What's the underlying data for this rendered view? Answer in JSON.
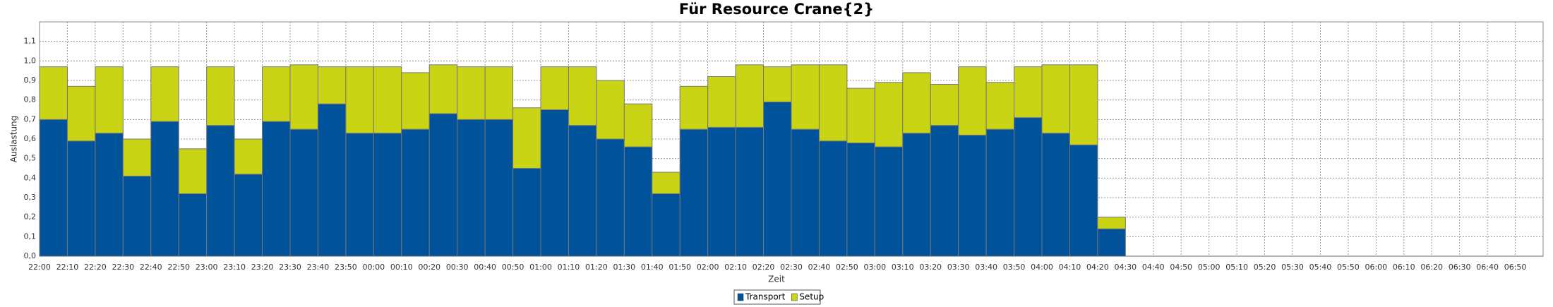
{
  "chart_data": {
    "type": "bar",
    "stacked": true,
    "title": "Für Resource Crane{2}",
    "x_label": "Zeit",
    "y_label": "Auslastung",
    "categories": [
      "22:00",
      "22:10",
      "22:20",
      "22:30",
      "22:40",
      "22:50",
      "23:00",
      "23:10",
      "23:20",
      "23:30",
      "23:40",
      "23:50",
      "00:00",
      "00:10",
      "00:20",
      "00:30",
      "00:40",
      "00:50",
      "01:00",
      "01:10",
      "01:20",
      "01:30",
      "01:40",
      "01:50",
      "02:00",
      "02:10",
      "02:20",
      "02:30",
      "02:40",
      "02:50",
      "03:00",
      "03:10",
      "03:20",
      "03:30",
      "03:40",
      "03:50",
      "04:00",
      "04:10",
      "04:20",
      "04:30",
      "04:40",
      "04:50",
      "05:00",
      "05:10",
      "05:20",
      "05:30",
      "05:40",
      "05:50",
      "06:00",
      "06:10",
      "06:20",
      "06:30",
      "06:40",
      "06:50"
    ],
    "series": [
      {
        "name": "Transport",
        "color": "#00529b",
        "values": [
          0.7,
          0.59,
          0.63,
          0.41,
          0.69,
          0.32,
          0.67,
          0.42,
          0.69,
          0.65,
          0.78,
          0.63,
          0.63,
          0.65,
          0.73,
          0.7,
          0.7,
          0.45,
          0.75,
          0.67,
          0.6,
          0.56,
          0.32,
          0.65,
          0.66,
          0.66,
          0.79,
          0.65,
          0.59,
          0.58,
          0.56,
          0.63,
          0.67,
          0.62,
          0.65,
          0.71,
          0.63,
          0.57,
          0.14,
          null,
          null,
          null,
          null,
          null,
          null,
          null,
          null,
          null,
          null,
          null,
          null,
          null,
          null,
          null
        ]
      },
      {
        "name": "Setup",
        "color": "#c8d414",
        "values": [
          0.27,
          0.28,
          0.34,
          0.19,
          0.28,
          0.23,
          0.3,
          0.18,
          0.28,
          0.33,
          0.19,
          0.34,
          0.34,
          0.29,
          0.25,
          0.27,
          0.27,
          0.31,
          0.22,
          0.3,
          0.3,
          0.22,
          0.11,
          0.22,
          0.26,
          0.32,
          0.18,
          0.33,
          0.39,
          0.28,
          0.33,
          0.31,
          0.21,
          0.35,
          0.24,
          0.26,
          0.35,
          0.41,
          0.06,
          null,
          null,
          null,
          null,
          null,
          null,
          null,
          null,
          null,
          null,
          null,
          null,
          null,
          null,
          null
        ]
      }
    ],
    "ylim": [
      0,
      1.2
    ],
    "yticks": [
      {
        "value": 0,
        "label": "0,0"
      },
      {
        "value": 0.1,
        "label": "0,1"
      },
      {
        "value": 0.2,
        "label": "0,2"
      },
      {
        "value": 0.3,
        "label": "0,3"
      },
      {
        "value": 0.4,
        "label": "0,4"
      },
      {
        "value": 0.5,
        "label": "0,5"
      },
      {
        "value": 0.6,
        "label": "0,6"
      },
      {
        "value": 0.7,
        "label": "0,7"
      },
      {
        "value": 0.8,
        "label": "0,8"
      },
      {
        "value": 0.9,
        "label": "0,9"
      },
      {
        "value": 1.0,
        "label": "1,0"
      },
      {
        "value": 1.1,
        "label": "1,1"
      }
    ],
    "grid": true,
    "legend": "bottom"
  }
}
